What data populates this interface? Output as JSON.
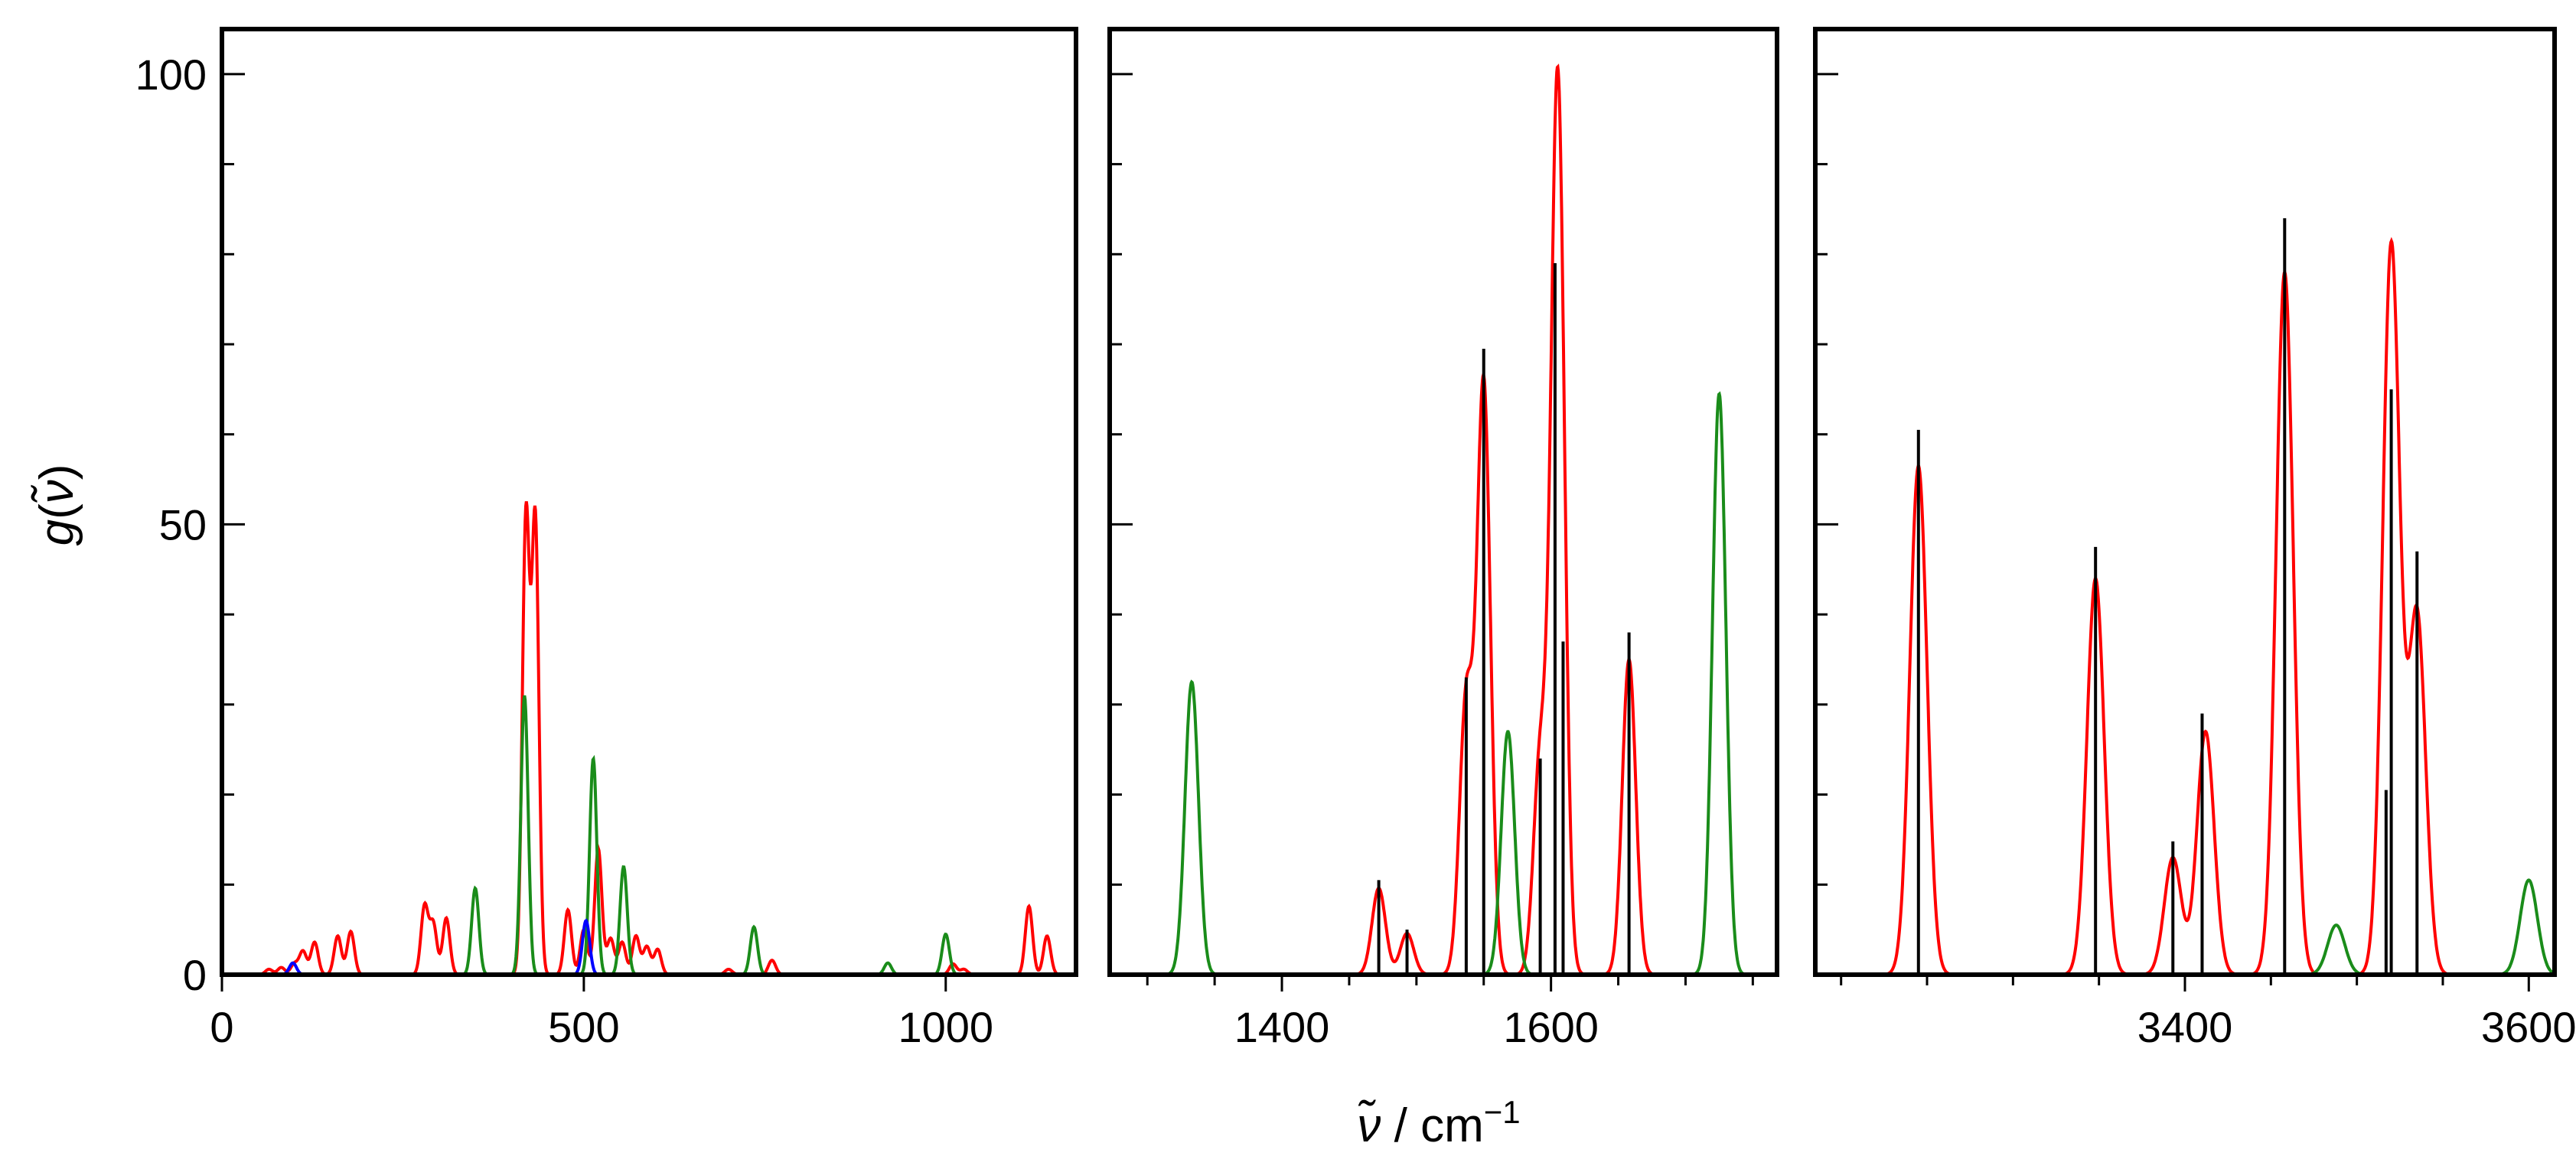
{
  "figure": {
    "ylabel_symbol": "g",
    "ylabel_arg": "ν̃",
    "xlabel_symbol": "ν̃",
    "xlabel_unit": " / cm",
    "xlabel_exp": "−1"
  },
  "colors": {
    "red": "#ff0000",
    "green": "#1a8c1a",
    "blue": "#0000ff",
    "black": "#000000"
  },
  "chart_data": [
    {
      "type": "line",
      "panel": "left",
      "xlim": [
        0,
        1180
      ],
      "ylim": [
        0,
        105
      ],
      "xticks": [
        0,
        500,
        1000
      ],
      "xtick_labels": [
        "0",
        "500",
        "1000"
      ],
      "yticks": [
        0,
        50,
        100
      ],
      "ytick_labels": [
        "0",
        "50",
        "100"
      ],
      "width": 5,
      "series": [
        {
          "color": "red",
          "peaks": [
            [
              65,
              0.6
            ],
            [
              82,
              0.8
            ],
            [
              100,
              1.2
            ],
            [
              112,
              2.6
            ],
            [
              128,
              3.6
            ],
            [
              160,
              4.3
            ],
            [
              178,
              4.8
            ],
            [
              280,
              7.6
            ],
            [
              292,
              5.6
            ],
            [
              310,
              6.3
            ],
            [
              420,
              50.6
            ],
            [
              433,
              50.1
            ],
            [
              478,
              7.2
            ],
            [
              500,
              5.0
            ],
            [
              520,
              14.0
            ],
            [
              537,
              4.0
            ],
            [
              553,
              3.6
            ],
            [
              572,
              4.3
            ],
            [
              587,
              3.1
            ],
            [
              602,
              2.8
            ],
            [
              700,
              0.6
            ],
            [
              760,
              1.6
            ],
            [
              1010,
              1.2
            ],
            [
              1025,
              0.6
            ],
            [
              1115,
              7.6
            ],
            [
              1140,
              4.3
            ]
          ]
        },
        {
          "color": "green",
          "peaks": [
            [
              350,
              9.6
            ],
            [
              418,
              31.0
            ],
            [
              513,
              24.0
            ],
            [
              555,
              12.0
            ],
            [
              735,
              5.3
            ],
            [
              920,
              1.3
            ],
            [
              1000,
              4.5
            ]
          ]
        },
        {
          "color": "blue",
          "peaks": [
            [
              98,
              1.3
            ],
            [
              503,
              6.0
            ]
          ]
        }
      ],
      "sticks": []
    },
    {
      "type": "line",
      "panel": "middle",
      "xlim": [
        1272,
        1768
      ],
      "ylim": [
        0,
        105
      ],
      "xticks": [
        1400,
        1600
      ],
      "xtick_labels": [
        "1400",
        "1600"
      ],
      "yticks": [
        0,
        50,
        100
      ],
      "ytick_labels": [],
      "width": 5,
      "series": [
        {
          "color": "red",
          "peaks": [
            [
              1472,
              9.6
            ],
            [
              1493,
              4.6
            ],
            [
              1537,
              30.5
            ],
            [
              1550,
              65.5
            ],
            [
              1592,
              24.0
            ],
            [
              1605,
              100.0
            ],
            [
              1658,
              35.0
            ]
          ]
        },
        {
          "color": "green",
          "peaks": [
            [
              1333,
              32.5
            ],
            [
              1568,
              27.0
            ],
            [
              1725,
              64.5
            ]
          ]
        }
      ],
      "sticks": [
        {
          "x": 1472,
          "y": 10.5
        },
        {
          "x": 1493,
          "y": 5.0
        },
        {
          "x": 1537,
          "y": 33.0
        },
        {
          "x": 1550,
          "y": 69.5
        },
        {
          "x": 1592,
          "y": 24.0
        },
        {
          "x": 1603,
          "y": 79.0
        },
        {
          "x": 1609,
          "y": 37.0
        },
        {
          "x": 1658,
          "y": 38.0
        }
      ]
    },
    {
      "type": "line",
      "panel": "right",
      "xlim": [
        3185,
        3615
      ],
      "ylim": [
        0,
        105
      ],
      "xticks": [
        3400,
        3600
      ],
      "xtick_labels": [
        "3400",
        "3600"
      ],
      "yticks": [
        0,
        50,
        100
      ],
      "ytick_labels": [],
      "width": 5,
      "series": [
        {
          "color": "red",
          "peaks": [
            [
              3245,
              56.5
            ],
            [
              3348,
              44.0
            ],
            [
              3393,
              13.0
            ],
            [
              3412,
              27.0
            ],
            [
              3458,
              78.0
            ],
            [
              3520,
              81.0
            ],
            [
              3535,
              40.0
            ]
          ]
        },
        {
          "color": "green",
          "peaks": [
            [
              3488,
              5.5
            ],
            [
              3600,
              10.5
            ]
          ]
        }
      ],
      "sticks": [
        {
          "x": 3245,
          "y": 60.5
        },
        {
          "x": 3348,
          "y": 47.5
        },
        {
          "x": 3393,
          "y": 14.8
        },
        {
          "x": 3410,
          "y": 29.0
        },
        {
          "x": 3458,
          "y": 84.0
        },
        {
          "x": 3517,
          "y": 20.5
        },
        {
          "x": 3520,
          "y": 65.0
        },
        {
          "x": 3535,
          "y": 47.0
        }
      ]
    }
  ]
}
